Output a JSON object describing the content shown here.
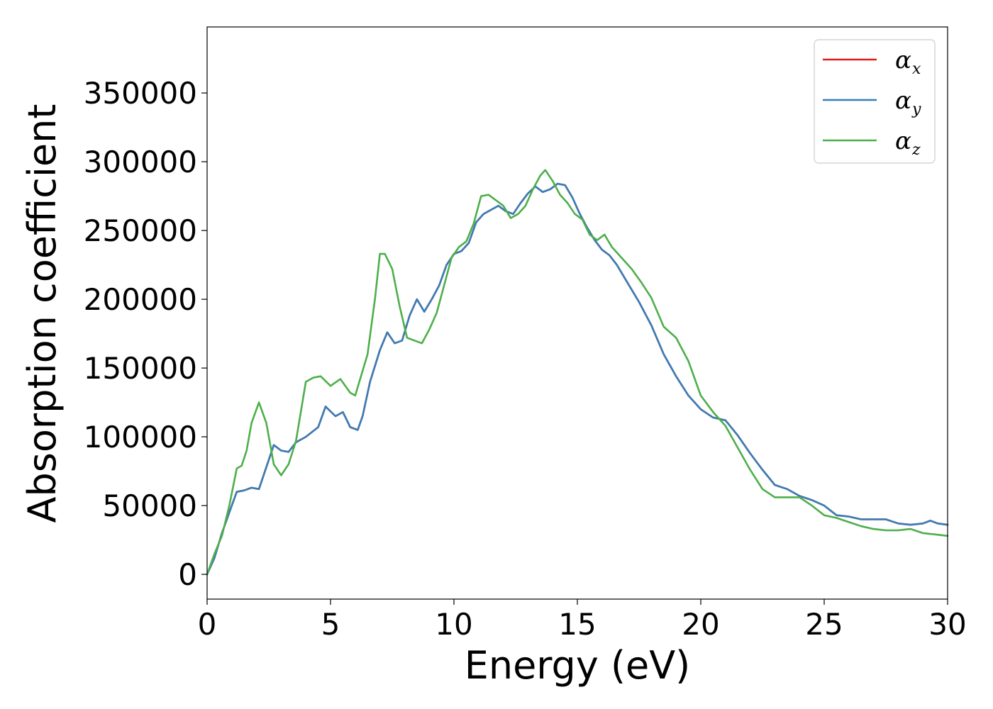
{
  "chart_data": {
    "type": "line",
    "title": "",
    "xlabel": "Energy (eV)",
    "ylabel": "Absorption coefficient",
    "xlim": [
      0,
      30
    ],
    "ylim": [
      -18000,
      398000
    ],
    "xticks": [
      0,
      5,
      10,
      15,
      20,
      25,
      30
    ],
    "yticks": [
      0,
      50000,
      100000,
      150000,
      200000,
      250000,
      300000,
      350000
    ],
    "grid": false,
    "legend_position": "top-right",
    "series": [
      {
        "name": "α",
        "subscript": "x",
        "color": "#e41a1c",
        "x": [
          0,
          0.3,
          0.6,
          0.9,
          1.2,
          1.5,
          1.8,
          2.1,
          2.4,
          2.7,
          3.0,
          3.3,
          3.6,
          4.0,
          4.5,
          4.8,
          5.2,
          5.5,
          5.8,
          6.1,
          6.3,
          6.6,
          7.0,
          7.3,
          7.6,
          7.9,
          8.2,
          8.5,
          8.8,
          9.1,
          9.4,
          9.7,
          10.0,
          10.3,
          10.6,
          10.9,
          11.2,
          11.5,
          11.8,
          12.1,
          12.4,
          12.7,
          13.0,
          13.3,
          13.6,
          13.9,
          14.2,
          14.5,
          14.8,
          15.1,
          15.4,
          15.7,
          16.0,
          16.3,
          16.6,
          17.0,
          17.5,
          18.0,
          18.5,
          19.0,
          19.5,
          20.0,
          20.5,
          21.0,
          21.5,
          22.0,
          22.5,
          23.0,
          23.5,
          24.0,
          24.5,
          25.0,
          25.5,
          26.0,
          26.5,
          27.0,
          27.5,
          28.0,
          28.5,
          29.0,
          29.3,
          29.6,
          30.0
        ],
        "y": [
          0,
          12000,
          30000,
          45000,
          60000,
          61000,
          63000,
          62000,
          78000,
          94000,
          90000,
          89000,
          96000,
          100000,
          107000,
          122000,
          115000,
          118000,
          107000,
          105000,
          115000,
          140000,
          163000,
          176000,
          168000,
          170000,
          188000,
          200000,
          191000,
          200000,
          210000,
          225000,
          233000,
          235000,
          241000,
          256000,
          262000,
          265000,
          268000,
          264000,
          262000,
          270000,
          277000,
          282000,
          278000,
          280000,
          284000,
          283000,
          274000,
          262000,
          252000,
          243000,
          236000,
          232000,
          225000,
          213000,
          198000,
          181000,
          160000,
          144000,
          130000,
          120000,
          114000,
          112000,
          101000,
          88000,
          76000,
          65000,
          62000,
          57000,
          54000,
          50000,
          43000,
          42000,
          40000,
          40000,
          40000,
          37000,
          36000,
          37000,
          39000,
          37000,
          36000
        ]
      },
      {
        "name": "α",
        "subscript": "y",
        "color": "#377eb8",
        "x": [
          0,
          0.3,
          0.6,
          0.9,
          1.2,
          1.5,
          1.8,
          2.1,
          2.4,
          2.7,
          3.0,
          3.3,
          3.6,
          4.0,
          4.5,
          4.8,
          5.2,
          5.5,
          5.8,
          6.1,
          6.3,
          6.6,
          7.0,
          7.3,
          7.6,
          7.9,
          8.2,
          8.5,
          8.8,
          9.1,
          9.4,
          9.7,
          10.0,
          10.3,
          10.6,
          10.9,
          11.2,
          11.5,
          11.8,
          12.1,
          12.4,
          12.7,
          13.0,
          13.3,
          13.6,
          13.9,
          14.2,
          14.5,
          14.8,
          15.1,
          15.4,
          15.7,
          16.0,
          16.3,
          16.6,
          17.0,
          17.5,
          18.0,
          18.5,
          19.0,
          19.5,
          20.0,
          20.5,
          21.0,
          21.5,
          22.0,
          22.5,
          23.0,
          23.5,
          24.0,
          24.5,
          25.0,
          25.5,
          26.0,
          26.5,
          27.0,
          27.5,
          28.0,
          28.5,
          29.0,
          29.3,
          29.6,
          30.0
        ],
        "y": [
          0,
          12000,
          30000,
          45000,
          60000,
          61000,
          63000,
          62000,
          78000,
          94000,
          90000,
          89000,
          96000,
          100000,
          107000,
          122000,
          115000,
          118000,
          107000,
          105000,
          115000,
          140000,
          163000,
          176000,
          168000,
          170000,
          188000,
          200000,
          191000,
          200000,
          210000,
          225000,
          233000,
          235000,
          241000,
          256000,
          262000,
          265000,
          268000,
          264000,
          262000,
          270000,
          277000,
          282000,
          278000,
          280000,
          284000,
          283000,
          274000,
          262000,
          252000,
          243000,
          236000,
          232000,
          225000,
          213000,
          198000,
          181000,
          160000,
          144000,
          130000,
          120000,
          114000,
          112000,
          101000,
          88000,
          76000,
          65000,
          62000,
          57000,
          54000,
          50000,
          43000,
          42000,
          40000,
          40000,
          40000,
          37000,
          36000,
          37000,
          39000,
          37000,
          36000
        ]
      },
      {
        "name": "α",
        "subscript": "z",
        "color": "#4daf4a",
        "x": [
          0,
          0.3,
          0.6,
          0.9,
          1.2,
          1.4,
          1.6,
          1.8,
          2.1,
          2.4,
          2.7,
          3.0,
          3.3,
          3.6,
          4.0,
          4.3,
          4.6,
          5.0,
          5.4,
          5.8,
          6.0,
          6.5,
          6.8,
          7.0,
          7.2,
          7.5,
          7.8,
          8.1,
          8.4,
          8.7,
          9.0,
          9.3,
          9.6,
          9.9,
          10.2,
          10.5,
          10.8,
          11.1,
          11.4,
          11.7,
          12.0,
          12.3,
          12.6,
          12.9,
          13.2,
          13.5,
          13.7,
          14.0,
          14.3,
          14.6,
          14.9,
          15.2,
          15.5,
          15.8,
          16.1,
          16.4,
          16.8,
          17.2,
          17.6,
          18.0,
          18.5,
          19.0,
          19.5,
          20.0,
          20.5,
          21.0,
          21.5,
          22.0,
          22.5,
          23.0,
          23.5,
          24.0,
          24.5,
          25.0,
          25.5,
          26.0,
          26.5,
          27.0,
          27.5,
          28.0,
          28.5,
          29.0,
          29.5,
          30.0
        ],
        "y": [
          0,
          15000,
          28000,
          50000,
          77000,
          79000,
          90000,
          110000,
          125000,
          110000,
          80000,
          72000,
          80000,
          97000,
          140000,
          143000,
          144000,
          137000,
          142000,
          132000,
          130000,
          160000,
          200000,
          233000,
          233000,
          222000,
          195000,
          172000,
          170000,
          168000,
          178000,
          190000,
          210000,
          230000,
          238000,
          242000,
          255000,
          275000,
          276000,
          272000,
          268000,
          259000,
          262000,
          268000,
          280000,
          290000,
          294000,
          286000,
          276000,
          270000,
          262000,
          258000,
          247000,
          243000,
          247000,
          238000,
          230000,
          222000,
          212000,
          201000,
          180000,
          172000,
          155000,
          130000,
          118000,
          108000,
          92000,
          76000,
          62000,
          56000,
          56000,
          56000,
          50000,
          43000,
          41000,
          38000,
          35000,
          33000,
          32000,
          32000,
          33000,
          30000,
          29000,
          28000
        ]
      }
    ]
  }
}
